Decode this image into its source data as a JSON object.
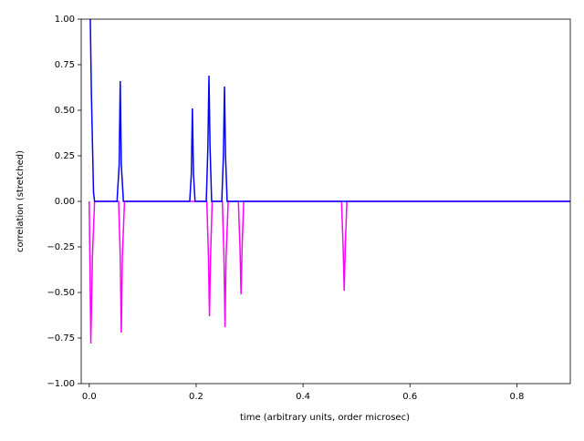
{
  "chart_data": {
    "type": "line",
    "xlabel": "time (arbitrary units, order microsec)",
    "ylabel": "correlation (stretched)",
    "xlim": [
      -0.015,
      0.9
    ],
    "ylim": [
      -1,
      1
    ],
    "xticks": [
      {
        "value": 0,
        "label": "0.0"
      },
      {
        "value": 0.2,
        "label": "0.2"
      },
      {
        "value": 0.4,
        "label": "0.4"
      },
      {
        "value": 0.6,
        "label": "0.6"
      },
      {
        "value": 0.8,
        "label": "0.8"
      }
    ],
    "yticks": [
      {
        "value": -1,
        "label": "−1.00"
      },
      {
        "value": -0.75,
        "label": "−0.75"
      },
      {
        "value": -0.5,
        "label": "−0.50"
      },
      {
        "value": -0.25,
        "label": "−0.25"
      },
      {
        "value": 0,
        "label": "0.00"
      },
      {
        "value": 0.25,
        "label": "0.25"
      },
      {
        "value": 0.5,
        "label": "0.50"
      },
      {
        "value": 0.75,
        "label": "0.75"
      },
      {
        "value": 1,
        "label": "1.00"
      }
    ],
    "series": [
      {
        "color": "#ff00ff",
        "x": [
          0,
          0.003,
          0.006,
          0.01,
          0.055,
          0.058,
          0.06,
          0.062,
          0.066,
          0.22,
          0.223,
          0.225,
          0.227,
          0.23,
          0.249,
          0.252,
          0.254,
          0.256,
          0.26,
          0.279,
          0.282,
          0.284,
          0.286,
          0.289,
          0.472,
          0.475,
          0.477,
          0.479,
          0.482,
          0.9
        ],
        "values": [
          0,
          -0.78,
          -0.3,
          0,
          0,
          -0.3,
          -0.72,
          -0.3,
          0,
          0,
          -0.3,
          -0.63,
          -0.3,
          0,
          0,
          -0.3,
          -0.69,
          -0.3,
          0,
          0,
          -0.25,
          -0.51,
          -0.25,
          0,
          0,
          -0.25,
          -0.49,
          -0.25,
          0,
          0
        ]
      },
      {
        "color": "#0000ff",
        "x": [
          0.002,
          0.004,
          0.008,
          0.01,
          0.052,
          0.056,
          0.058,
          0.06,
          0.064,
          0.188,
          0.191,
          0.193,
          0.195,
          0.198,
          0.219,
          0.222,
          0.224,
          0.226,
          0.229,
          0.248,
          0.251,
          0.253,
          0.255,
          0.258,
          0.9
        ],
        "values": [
          1,
          0.6,
          0.05,
          0,
          0,
          0.2,
          0.66,
          0.2,
          0,
          0,
          0.15,
          0.51,
          0.15,
          0,
          0,
          0.3,
          0.69,
          0.3,
          0,
          0,
          0.25,
          0.63,
          0.25,
          0,
          0
        ]
      }
    ]
  }
}
